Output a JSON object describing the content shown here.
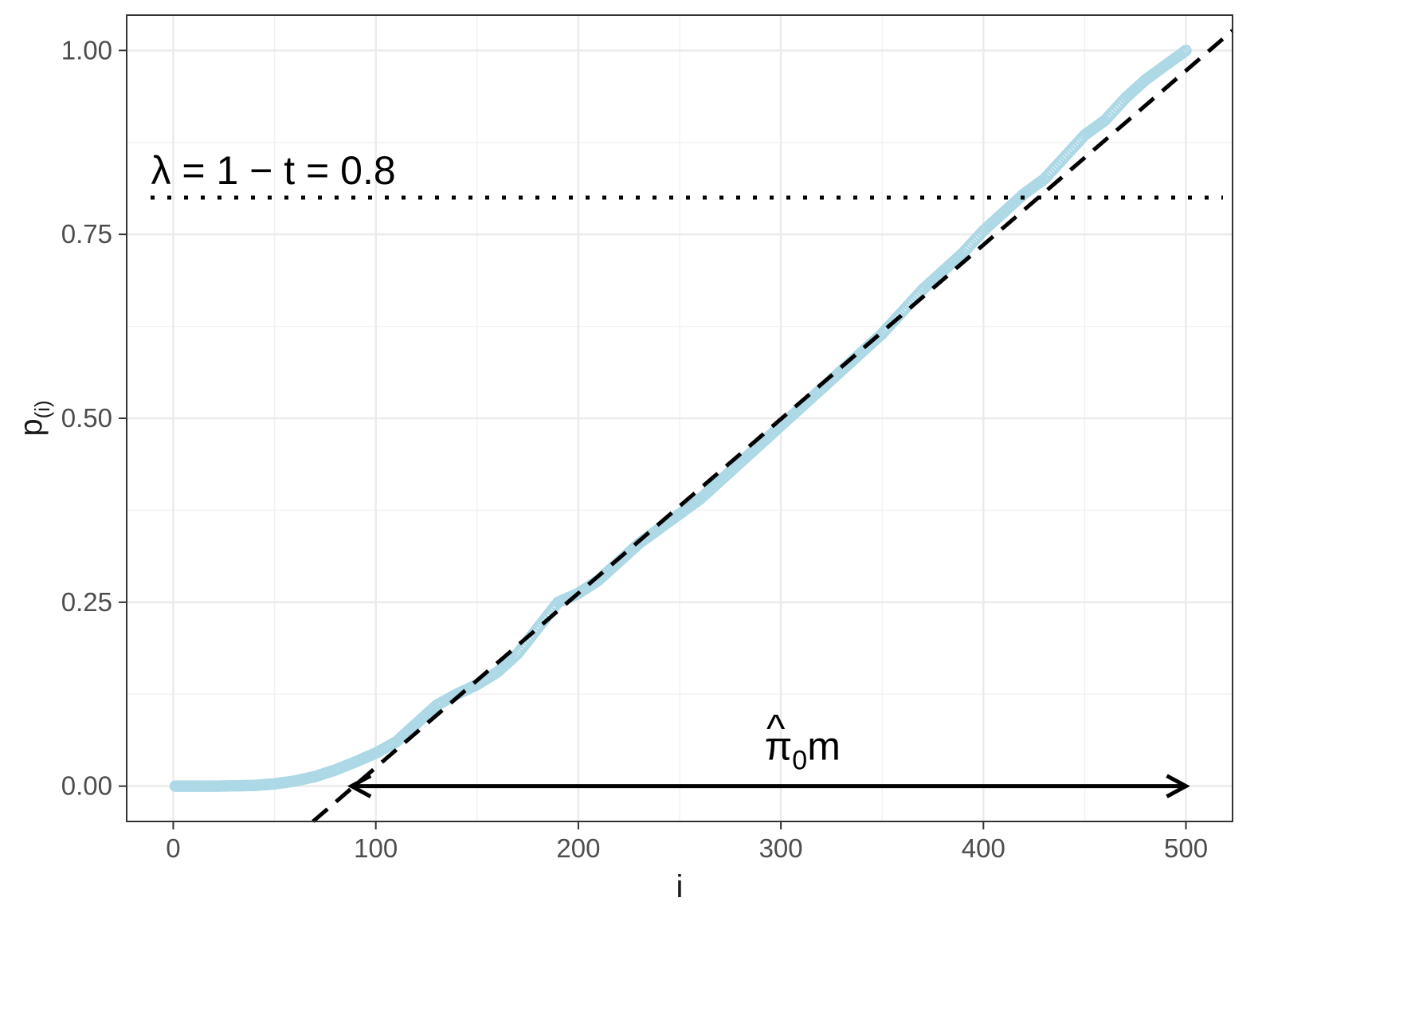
{
  "chart_data": {
    "type": "scatter",
    "title": "",
    "xlabel": "i",
    "ylabel_main": "p",
    "ylabel_sub": "(i)",
    "xlim": [
      -23,
      523
    ],
    "ylim": [
      -0.048,
      1.048
    ],
    "x_ticks": [
      0,
      100,
      200,
      300,
      400,
      500
    ],
    "x_tick_labels": [
      "0",
      "100",
      "200",
      "300",
      "400",
      "500"
    ],
    "y_ticks": [
      0,
      0.25,
      0.5,
      0.75,
      1.0
    ],
    "y_tick_labels": [
      "0.00",
      "0.25",
      "0.50",
      "0.75",
      "1.00"
    ],
    "grid": true,
    "legend": "none",
    "n_points": 500,
    "points_color": "#add8e6",
    "series": [
      {
        "kind": "sorted-pvalues",
        "color": "#add8e6",
        "anchors": [
          [
            0,
            0.0
          ],
          [
            20,
            0.0
          ],
          [
            40,
            0.001
          ],
          [
            50,
            0.003
          ],
          [
            60,
            0.007
          ],
          [
            70,
            0.013
          ],
          [
            80,
            0.022
          ],
          [
            90,
            0.033
          ],
          [
            100,
            0.045
          ],
          [
            110,
            0.06
          ],
          [
            120,
            0.085
          ],
          [
            130,
            0.11
          ],
          [
            140,
            0.125
          ],
          [
            150,
            0.138
          ],
          [
            160,
            0.155
          ],
          [
            170,
            0.18
          ],
          [
            180,
            0.215
          ],
          [
            190,
            0.25
          ],
          [
            200,
            0.262
          ],
          [
            210,
            0.28
          ],
          [
            220,
            0.305
          ],
          [
            230,
            0.33
          ],
          [
            240,
            0.35
          ],
          [
            250,
            0.37
          ],
          [
            260,
            0.39
          ],
          [
            270,
            0.415
          ],
          [
            280,
            0.44
          ],
          [
            290,
            0.465
          ],
          [
            300,
            0.49
          ],
          [
            310,
            0.515
          ],
          [
            320,
            0.54
          ],
          [
            330,
            0.565
          ],
          [
            340,
            0.59
          ],
          [
            350,
            0.615
          ],
          [
            360,
            0.645
          ],
          [
            370,
            0.675
          ],
          [
            380,
            0.7
          ],
          [
            390,
            0.725
          ],
          [
            400,
            0.755
          ],
          [
            410,
            0.78
          ],
          [
            420,
            0.805
          ],
          [
            430,
            0.825
          ],
          [
            440,
            0.855
          ],
          [
            450,
            0.885
          ],
          [
            460,
            0.905
          ],
          [
            470,
            0.935
          ],
          [
            480,
            0.96
          ],
          [
            490,
            0.98
          ],
          [
            500,
            1.0
          ]
        ]
      }
    ],
    "reference_lines": [
      {
        "kind": "dashed-fit",
        "x": [
          69,
          523
        ],
        "y": [
          -0.048,
          1.027
        ],
        "color": "#000000"
      },
      {
        "kind": "dotted-hline",
        "y": 0.8,
        "color": "#000000"
      }
    ],
    "arrow": {
      "x_start": 88,
      "x_end": 500,
      "y": 0.0,
      "style": "double-headed"
    },
    "annotations": [
      {
        "text": "λ =  1 − t = 0.8",
        "x": -11,
        "y": 0.84
      },
      {
        "text": "π̂₀m",
        "base": "π",
        "hat": "^",
        "subscript": "0",
        "suffix": "m",
        "x": 292,
        "y": 0.06
      }
    ]
  }
}
